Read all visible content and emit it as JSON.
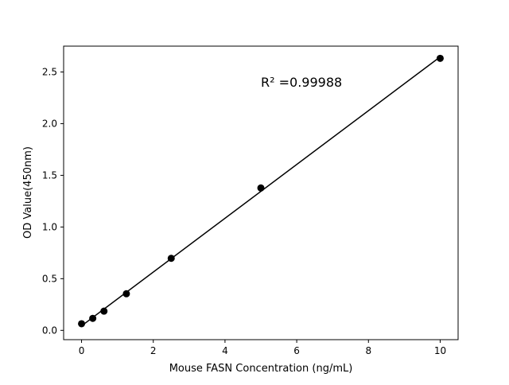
{
  "chart_data": {
    "type": "scatter",
    "title": "",
    "xlabel": "Mouse FASN Concentration (ng/mL)",
    "ylabel": "OD Value(450nm)",
    "xlim": [
      -0.5,
      10.5
    ],
    "ylim": [
      -0.09,
      2.75
    ],
    "xticks": [
      0,
      2,
      4,
      6,
      8,
      10
    ],
    "xtick_labels": [
      "0",
      "2",
      "4",
      "6",
      "8",
      "10"
    ],
    "yticks": [
      0.0,
      0.5,
      1.0,
      1.5,
      2.0,
      2.5
    ],
    "ytick_labels": [
      "0.0",
      "0.5",
      "1.0",
      "1.5",
      "2.0",
      "2.5"
    ],
    "grid": false,
    "series": [
      {
        "x": [
          0,
          0.3125,
          0.625,
          1.25,
          2.5,
          5,
          10
        ],
        "y": [
          0.064,
          0.116,
          0.186,
          0.354,
          0.697,
          1.378,
          2.632
        ],
        "color": "#000000",
        "marker": "circle",
        "fit_line": "linear"
      }
    ],
    "annotation": "R² =0.99988"
  }
}
